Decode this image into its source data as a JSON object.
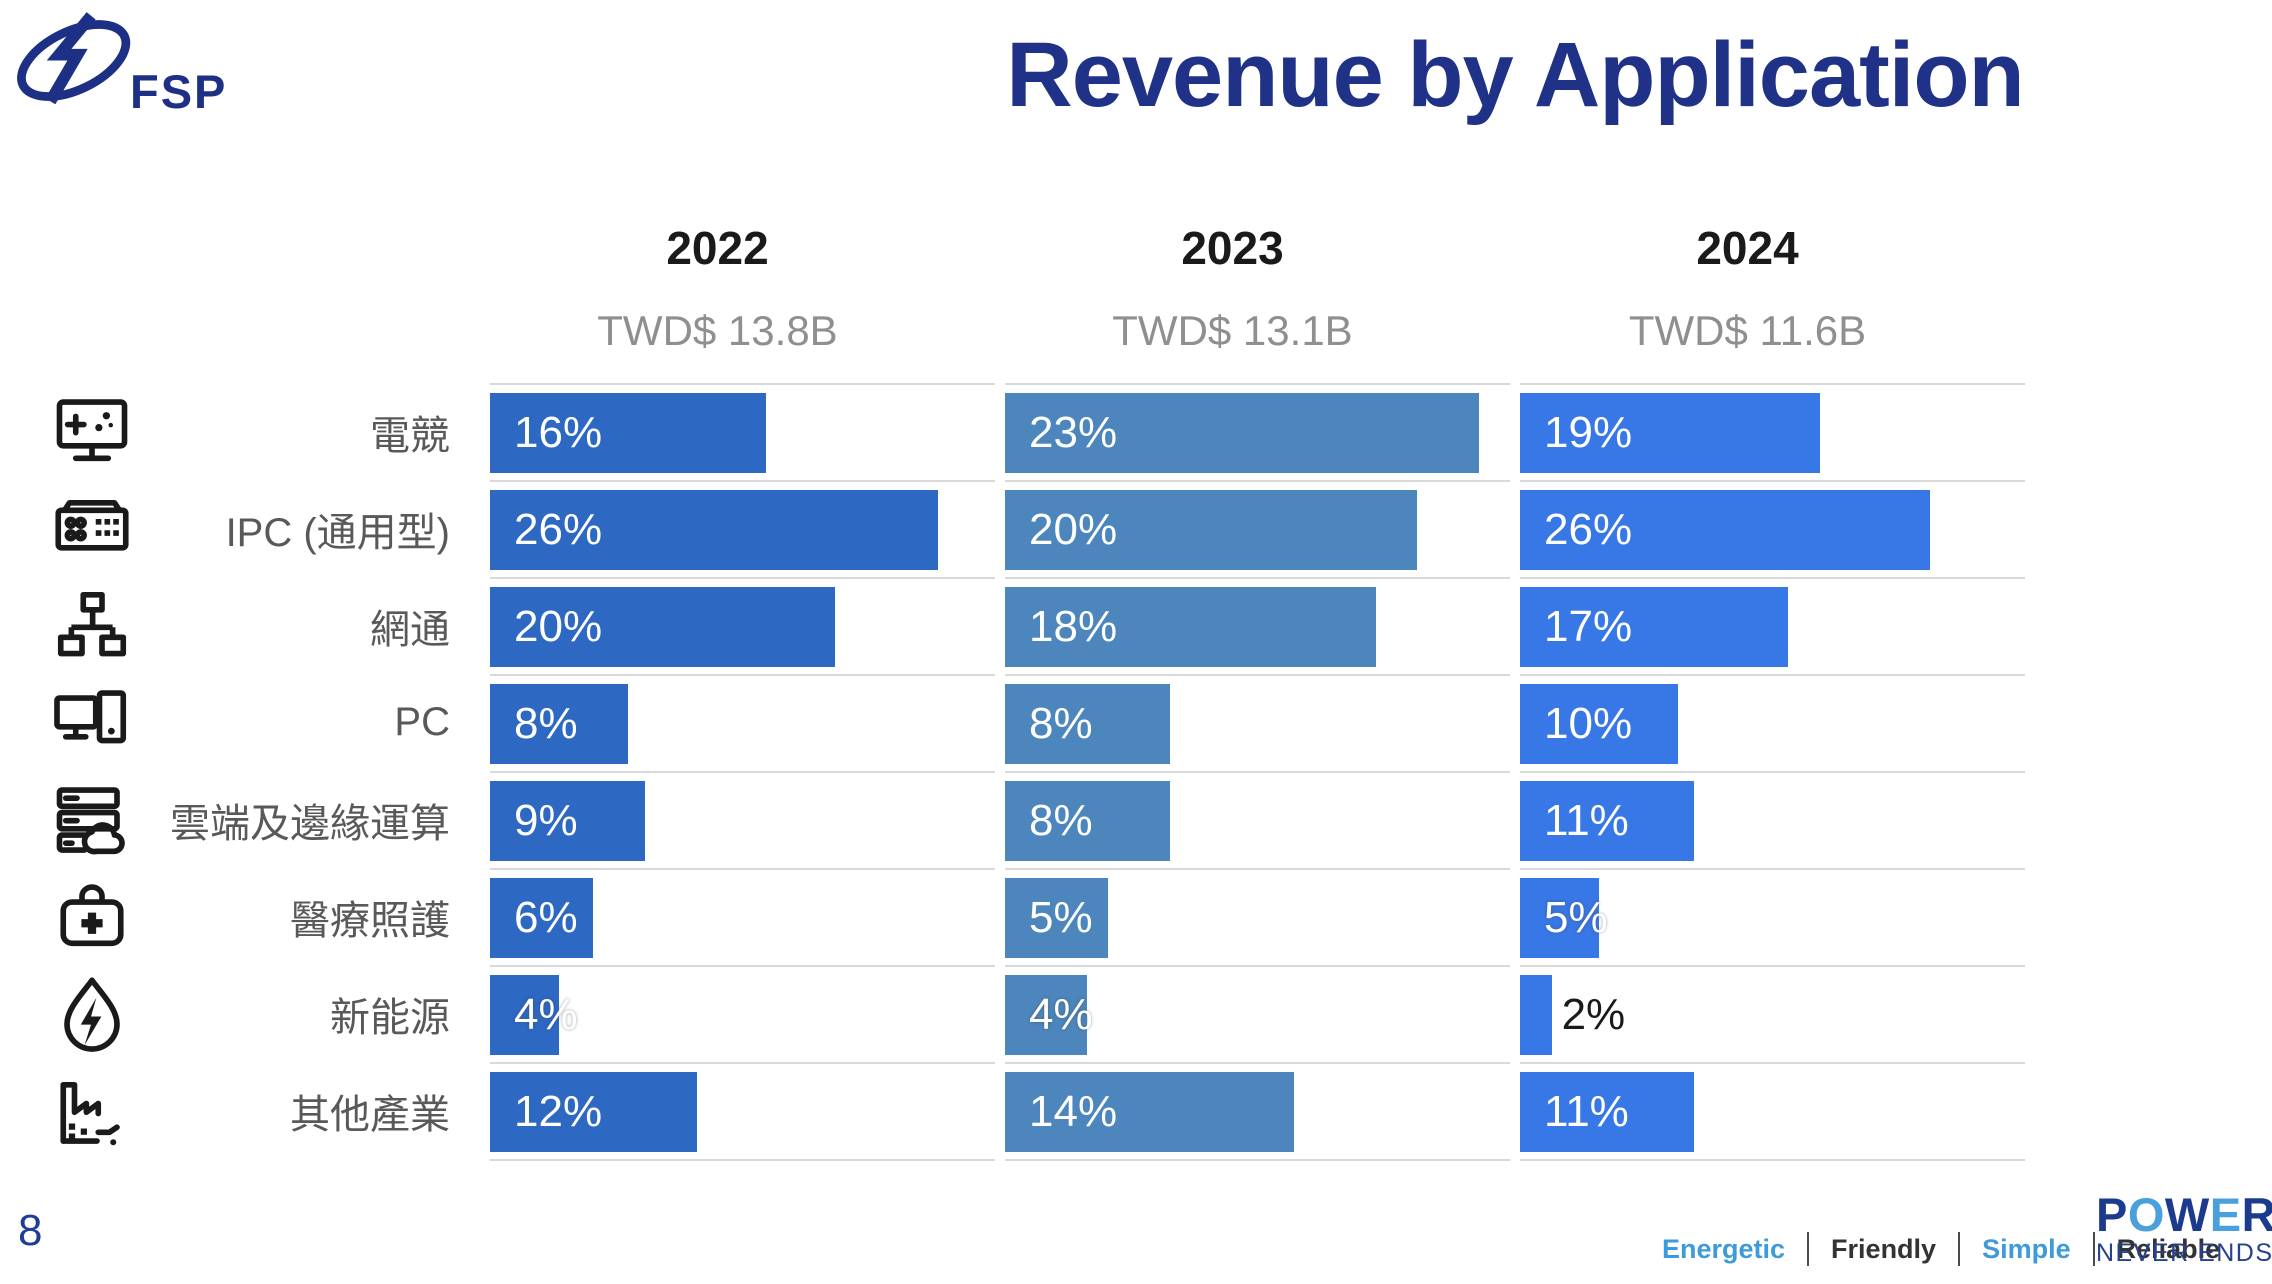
{
  "slide": {
    "title": "Revenue by Application",
    "page_number": "8",
    "logo": {
      "text": "FSP"
    },
    "footer": {
      "values": [
        {
          "label": "Energetic",
          "color": "#3E9BDB"
        },
        {
          "label": "Friendly",
          "color": "#333333"
        },
        {
          "label": "Simple",
          "color": "#3E9BDB"
        },
        {
          "label": "Reliable",
          "color": "#333333"
        }
      ],
      "brand": {
        "power_letters": [
          {
            "ch": "P",
            "color": "#1C3B8E"
          },
          {
            "ch": "O",
            "color": "#4AA0DC"
          },
          {
            "ch": "W",
            "color": "#1C3B8E"
          },
          {
            "ch": "E",
            "color": "#4AA0DC"
          },
          {
            "ch": "R",
            "color": "#1C3B8E"
          }
        ],
        "tagline": "NEVER ENDS",
        "tagline_color": "#27418F"
      }
    }
  },
  "theme": {
    "title_color": "#1F3287",
    "year_color": "#1A1A1A",
    "revenue_color": "#8F8F8F",
    "category_color": "#595959",
    "icon_color": "#1A1A1A",
    "gridline_color": "#D9D9D9",
    "bar_label_color": "#FFFFFF",
    "outside_label_color": "#1A1A1A",
    "page_number_color": "#1F3C9A",
    "logo_color": "#1E2F86"
  },
  "chart_data": {
    "type": "bar",
    "orientation": "horizontal",
    "title": "Revenue by Application",
    "unit": "%",
    "value_label_format": "{v}%",
    "grid": true,
    "categories": [
      "電競",
      "IPC (通用型)",
      "網通",
      "PC",
      "雲端及邊緣運算",
      "醫療照護",
      "新能源",
      "其他產業"
    ],
    "category_icons": [
      "gaming-monitor-icon",
      "ipc-icon",
      "network-icon",
      "pc-icon",
      "cloud-edge-server-icon",
      "medical-bag-icon",
      "new-energy-icon",
      "factory-icon"
    ],
    "series": [
      {
        "name": "2022",
        "revenue_label": "TWD$ 13.8B",
        "color": "#2D68C3",
        "axis_max": 29.3,
        "values": [
          16,
          26,
          20,
          8,
          9,
          6,
          4,
          12
        ]
      },
      {
        "name": "2023",
        "revenue_label": "TWD$ 13.1B",
        "color": "#4C86BC",
        "axis_max": 24.5,
        "values": [
          23,
          20,
          18,
          8,
          8,
          5,
          4,
          14
        ]
      },
      {
        "name": "2024",
        "revenue_label": "TWD$ 11.6B",
        "color": "#3877E6",
        "axis_max": 32,
        "values": [
          19,
          26,
          17,
          10,
          11,
          5,
          2,
          11
        ]
      }
    ]
  }
}
